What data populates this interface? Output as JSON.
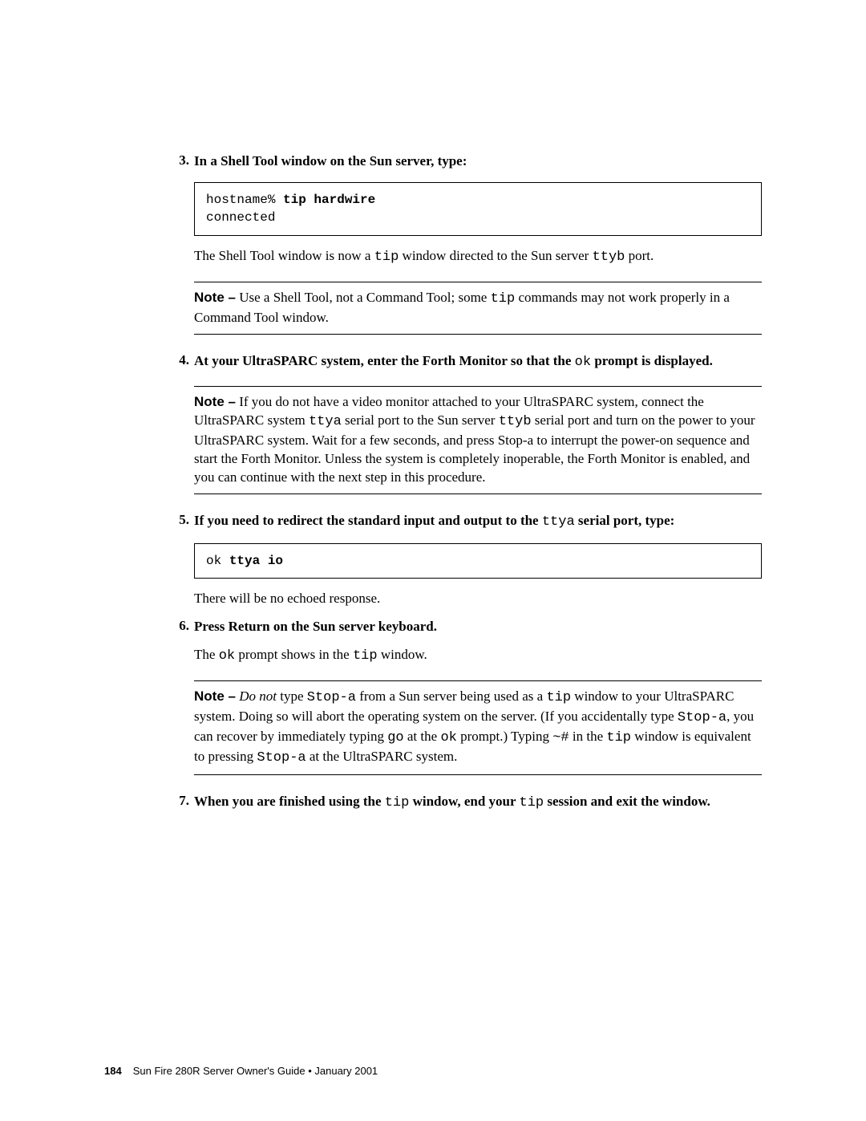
{
  "colors": {
    "background": "#ffffff",
    "text": "#000000",
    "border": "#000000"
  },
  "typography": {
    "body_font": "Palatino",
    "mono_font": "Courier New",
    "note_label_font": "Arial",
    "body_size_pt": 13,
    "footer_size_pt": 10
  },
  "steps": {
    "s3": {
      "num": "3.",
      "title_pre": "In a Shell Tool window on the Sun server, type:",
      "code_line1_plain": "hostname% ",
      "code_line1_bold": "tip hardwire",
      "code_line2": "connected",
      "after_pre": "The Shell Tool window is now a ",
      "after_mono1": "tip",
      "after_mid": " window directed to the Sun server ",
      "after_mono2": "ttyb",
      "after_post": " port."
    },
    "note1": {
      "label": "Note –",
      "pre": " Use a Shell Tool, not a Command Tool; some ",
      "mono": "tip",
      "post": " commands may not work properly in a Command Tool window."
    },
    "s4": {
      "num": "4.",
      "pre": "At your UltraSPARC system, enter the Forth Monitor so that the ",
      "mono": "ok",
      "post": " prompt is displayed."
    },
    "note2": {
      "label": "Note –",
      "t1": " If you do not have a video monitor attached to your UltraSPARC system, connect the UltraSPARC system ",
      "m1": "ttya",
      "t2": " serial port to the Sun server ",
      "m2": "ttyb",
      "t3": " serial port and turn on the power to your UltraSPARC system. Wait for a few seconds, and press Stop-a to interrupt the power-on sequence and start the Forth Monitor. Unless the system is completely inoperable, the Forth Monitor is enabled, and you can continue with the next step in this procedure."
    },
    "s5": {
      "num": "5.",
      "pre": "If you need to redirect the standard input and output to the ",
      "mono": "ttya",
      "post": " serial port, type:",
      "code_plain": "ok ",
      "code_bold": "ttya io",
      "after": "There will be no echoed response."
    },
    "s6": {
      "num": "6.",
      "title": "Press Return on the Sun server keyboard.",
      "p_pre": "The ",
      "p_m1": "ok",
      "p_mid": " prompt shows in the ",
      "p_m2": "tip",
      "p_post": " window."
    },
    "note3": {
      "label": "Note –",
      "em": " Do not",
      "t1": " type ",
      "m1": "Stop-a",
      "t2": " from a Sun server being used as a ",
      "m2": "tip",
      "t3": " window to your UltraSPARC system. Doing so will abort the operating system on the server. (If you accidentally type ",
      "m3": "Stop-a",
      "t4": ", you can recover by immediately typing ",
      "m4": "go",
      "t5": " at the ",
      "m5": "ok",
      "t6": " prompt.) Typing ",
      "m6": "~#",
      "t7": " in the ",
      "m7": "tip",
      "t8": " window is equivalent to pressing ",
      "m8": "Stop-a",
      "t9": " at the UltraSPARC system."
    },
    "s7": {
      "num": "7.",
      "pre": "When you are finished using the ",
      "m1": "tip",
      "mid": " window, end your ",
      "m2": "tip",
      "post": " session and exit the window."
    }
  },
  "footer": {
    "page_number": "184",
    "doc_title": "Sun Fire 280R Server Owner's Guide • January 2001"
  }
}
